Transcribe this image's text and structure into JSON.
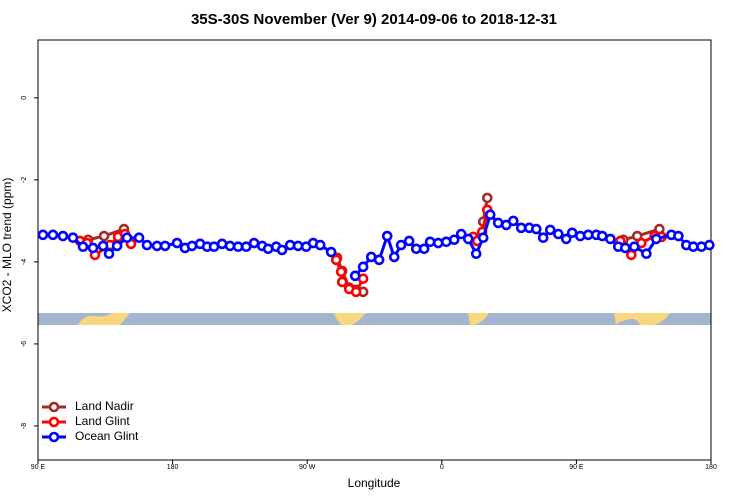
{
  "chart_data": {
    "type": "line",
    "title": "35S-30S November (Ver 9)   2014-09-06 to 2018-12-31",
    "x_label": "Longitude",
    "y_label": "XCO2 - MLO trend (ppm)",
    "xlim": [
      90,
      540
    ],
    "ylim": [
      -8.83,
      1.41
    ],
    "xticks": [
      {
        "value": 90,
        "label": "90 E"
      },
      180,
      {
        "value": 270,
        "label": "90 W"
      },
      {
        "value": 360,
        "label": "0"
      },
      {
        "value": 450,
        "label": "90 E"
      },
      {
        "value": 540,
        "label": "180"
      }
    ],
    "yticks": [
      0,
      -2,
      -4,
      -6,
      -8
    ],
    "legend": "bottom-left",
    "series": [
      {
        "name": "Land Nadir",
        "color": "#a52a2a",
        "x": [
          123.5,
          134.2,
          147.5,
          null,
          290,
          293.4,
          298.1,
          302.7,
          307.4,
          null,
          387.7,
          390.4,
          null,
          481.4,
          490.7,
          505.5
        ],
        "values": [
          -3.46,
          -3.37,
          -3.2,
          null,
          -3.9,
          -4.22,
          -4.63,
          -4.68,
          -4.73,
          null,
          -3.02,
          -2.44,
          null,
          -3.46,
          -3.37,
          -3.2
        ]
      },
      {
        "name": "Land Glint",
        "color": "#ff0000",
        "x": [
          118.1,
          122.8,
          128.1,
          138.2,
          143.5,
          148.2,
          152.2,
          null,
          289.4,
          292.7,
          293.4,
          298.1,
          302.7,
          307.4,
          null,
          381,
          383.7,
          387,
          390.4,
          null,
          479.4,
          486.7,
          493.4,
          502.3,
          507
        ],
        "values": [
          -3.49,
          -3.54,
          -3.83,
          -3.59,
          -3.39,
          -3.32,
          -3.56,
          null,
          -3.95,
          -4.24,
          -4.49,
          -4.66,
          -4.73,
          -4.41,
          null,
          -3.39,
          -3.49,
          -3.27,
          -2.73,
          null,
          -3.49,
          -3.83,
          -3.54,
          -3.37,
          -3.39
        ]
      },
      {
        "name": "Ocean Glint",
        "color": "#0000ff",
        "x": [
          93.3,
          100,
          106.7,
          113.4,
          120.1,
          126.8,
          133.5,
          137.5,
          142.9,
          149.5,
          157.6,
          162.9,
          169.6,
          175,
          183,
          188.3,
          193,
          198.4,
          203.1,
          207.7,
          213.1,
          218.4,
          223.8,
          229.2,
          234.5,
          239.9,
          243.9,
          249.3,
          253.2,
          258.6,
          263.9,
          269.3,
          274,
          278.7,
          286,
          null,
          302.1,
          307.4,
          312.8,
          318.1,
          323.5,
          328.2,
          332.8,
          338.2,
          342.9,
          348.2,
          352.2,
          357.6,
          363,
          368.3,
          373,
          377.7,
          383,
          387.7,
          392.4,
          397.7,
          403.1,
          407.8,
          413.1,
          418.5,
          423.2,
          427.8,
          432.5,
          437.9,
          443.2,
          447.2,
          452.6,
          457.9,
          463.3,
          467.3,
          472.7,
          478,
          482.7,
          488.7,
          496.8,
          503.4,
          513.5,
          518.2,
          523.5,
          528.2,
          533.6,
          538.9
        ],
        "values": [
          -3.34,
          -3.34,
          -3.37,
          -3.41,
          -3.63,
          -3.66,
          -3.61,
          -3.8,
          -3.61,
          -3.41,
          -3.41,
          -3.59,
          -3.61,
          -3.61,
          -3.54,
          -3.66,
          -3.61,
          -3.56,
          -3.63,
          -3.63,
          -3.56,
          -3.61,
          -3.63,
          -3.63,
          -3.54,
          -3.61,
          -3.68,
          -3.63,
          -3.71,
          -3.59,
          -3.61,
          -3.63,
          -3.54,
          -3.59,
          -3.76,
          null,
          -4.34,
          -4.12,
          -3.88,
          -3.95,
          -3.37,
          -3.88,
          -3.59,
          -3.49,
          -3.68,
          -3.68,
          -3.51,
          -3.54,
          -3.51,
          -3.46,
          -3.32,
          -3.44,
          -3.8,
          -3.41,
          -2.85,
          -3.05,
          -3.1,
          -3,
          -3.17,
          -3.17,
          -3.2,
          -3.41,
          -3.22,
          -3.32,
          -3.44,
          -3.29,
          -3.37,
          -3.34,
          -3.34,
          -3.37,
          -3.44,
          -3.63,
          -3.66,
          -3.63,
          -3.8,
          -3.44,
          -3.34,
          -3.37,
          -3.59,
          -3.63,
          -3.63,
          -3.59
        ]
      }
    ]
  }
}
